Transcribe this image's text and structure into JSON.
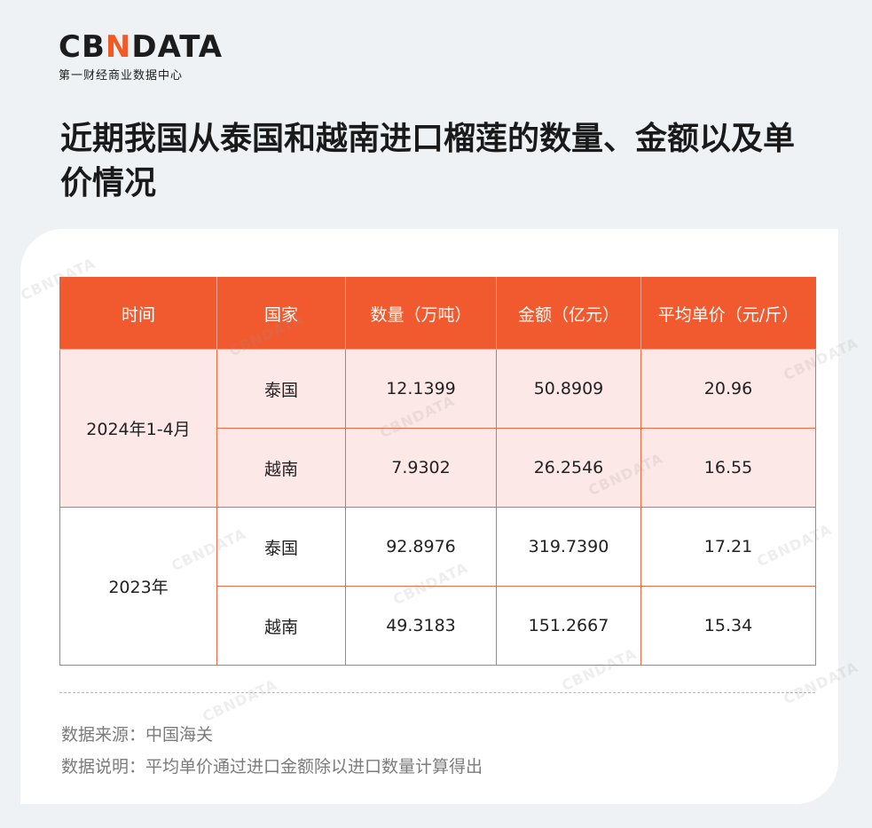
{
  "brand": {
    "logo_prefix": "CB",
    "logo_n": "N",
    "logo_suffix": "DATA",
    "subtitle": "第一财经商业数据中心",
    "accent_color": "#f15a24"
  },
  "title": "近期我国从泰国和越南进口榴莲的数量、金额以及单价情况",
  "table": {
    "headers": [
      "时间",
      "国家",
      "数量（万吨）",
      "金额（亿元）",
      "平均单价（元/斤）"
    ],
    "groups": [
      {
        "period": "2024年1-4月",
        "rows": [
          {
            "country": "泰国",
            "quantity": "12.1399",
            "amount": "50.8909",
            "unit_price": "20.96"
          },
          {
            "country": "越南",
            "quantity": "7.9302",
            "amount": "26.2546",
            "unit_price": "16.55"
          }
        ]
      },
      {
        "period": "2023年",
        "rows": [
          {
            "country": "泰国",
            "quantity": "92.8976",
            "amount": "319.7390",
            "unit_price": "17.21"
          },
          {
            "country": "越南",
            "quantity": "49.3183",
            "amount": "151.2667",
            "unit_price": "15.34"
          }
        ]
      }
    ]
  },
  "notes": {
    "source": "数据来源：中国海关",
    "explanation": "数据说明：平均单价通过进口金额除以进口数量计算得出"
  },
  "watermark": "CBNDATA"
}
